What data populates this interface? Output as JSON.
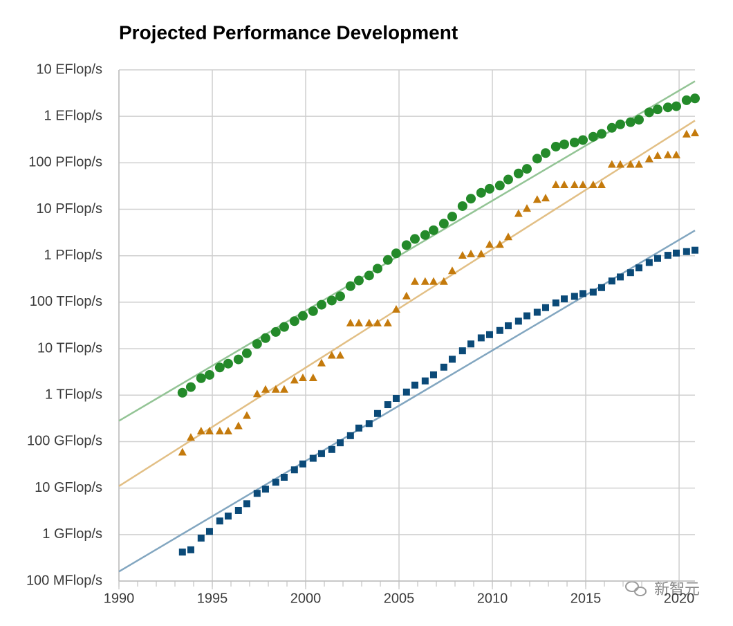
{
  "chart_data": {
    "type": "scatter",
    "title": "Projected Performance Development",
    "log_scale": true,
    "grid": true,
    "xlim": [
      1990,
      2020.85
    ],
    "xticks": [
      1990,
      1995,
      2000,
      2005,
      2010,
      2015,
      2020
    ],
    "ylim": [
      100000000.0,
      1e+19
    ],
    "yticks": [
      {
        "value": 100000000.0,
        "label": "100 MFlop/s"
      },
      {
        "value": 1000000000.0,
        "label": "1 GFlop/s"
      },
      {
        "value": 10000000000.0,
        "label": "10 GFlop/s"
      },
      {
        "value": 100000000000.0,
        "label": "100 GFlop/s"
      },
      {
        "value": 1000000000000.0,
        "label": "1 TFlop/s"
      },
      {
        "value": 10000000000000.0,
        "label": "10 TFlop/s"
      },
      {
        "value": 100000000000000.0,
        "label": "100 TFlop/s"
      },
      {
        "value": 1000000000000000.0,
        "label": "1 PFlop/s"
      },
      {
        "value": 1e+16,
        "label": "10 PFlop/s"
      },
      {
        "value": 1e+17,
        "label": "100 PFlop/s"
      },
      {
        "value": 1e+18,
        "label": "1 EFlop/s"
      },
      {
        "value": 1e+19,
        "label": "10 EFlop/s"
      }
    ],
    "x": [
      1993.4,
      1993.85,
      1994.4,
      1994.85,
      1995.4,
      1995.85,
      1996.4,
      1996.85,
      1997.4,
      1997.85,
      1998.4,
      1998.85,
      1999.4,
      1999.85,
      2000.4,
      2000.85,
      2001.4,
      2001.85,
      2002.4,
      2002.85,
      2003.4,
      2003.85,
      2004.4,
      2004.85,
      2005.4,
      2005.85,
      2006.4,
      2006.85,
      2007.4,
      2007.85,
      2008.4,
      2008.85,
      2009.4,
      2009.85,
      2010.4,
      2010.85,
      2011.4,
      2011.85,
      2012.4,
      2012.85,
      2013.4,
      2013.85,
      2014.4,
      2014.85,
      2015.4,
      2015.85,
      2016.4,
      2016.85,
      2017.4,
      2017.85,
      2018.4,
      2018.85,
      2019.4,
      2019.85,
      2020.4,
      2020.85
    ],
    "series": [
      {
        "marker": "circle",
        "color": "#248a2a",
        "values": [
          1128000000000.0,
          1493000000000.0,
          2317000000000.0,
          2732000000000.0,
          3940000000000.0,
          4770000000000.0,
          5880000000000.0,
          7990000000000.0,
          12700000000000.0,
          16900000000000.0,
          22900000000000.0,
          29400000000000.0,
          39100000000000.0,
          50800000000000.0,
          64300000000000.0,
          88100000000000.0,
          108800000000000.0,
          134300000000000.0,
          222000000000000.0,
          293000000000000.0,
          375000000000000.0,
          528000000000000.0,
          813000000000000.0,
          1127000000000000.0,
          1690000000000000.0,
          2300000000000000.0,
          2790000000000000.0,
          3540000000000000.0,
          4920000000000000.0,
          6970000000000000.0,
          1.17e+16,
          1.69e+16,
          2.26e+16,
          2.76e+16,
          3.24e+16,
          4.37e+16,
          5.89e+16,
          7.42e+16,
          1.23e+17,
          1.62e+17,
          2.23e+17,
          2.5e+17,
          2.74e+17,
          3.09e+17,
          3.63e+17,
          4.2e+17,
          5.66e+17,
          6.72e+17,
          7.49e+17,
          8.45e+17,
          1.22e+18,
          1.41e+18,
          1.56e+18,
          1.65e+18,
          2.22e+18,
          2.43e+18
        ]
      },
      {
        "marker": "triangle",
        "color": "#c47a0c",
        "values": [
          59700000000.0,
          124000000000.0,
          170000000000.0,
          170000000000.0,
          170000000000.0,
          170000000000.0,
          220000000000.0,
          368000000000.0,
          1070000000000.0,
          1340000000000.0,
          1340000000000.0,
          1340000000000.0,
          2120000000000.0,
          2380000000000.0,
          2380000000000.0,
          4940000000000.0,
          7230000000000.0,
          7230000000000.0,
          35900000000000.0,
          35900000000000.0,
          35900000000000.0,
          35900000000000.0,
          35900000000000.0,
          70700000000000.0,
          136800000000000.0,
          280600000000000.0,
          280600000000000.0,
          280600000000000.0,
          280600000000000.0,
          478200000000000.0,
          1026000000000000.0,
          1105000000000000.0,
          1105000000000000.0,
          1759000000000000.0,
          1759000000000000.0,
          2566000000000000.0,
          8160000000000000.0,
          1.051e+16,
          1.632e+16,
          1.759e+16,
          3.386e+16,
          3.386e+16,
          3.386e+16,
          3.386e+16,
          3.386e+16,
          3.386e+16,
          9.3e+16,
          9.3e+16,
          9.3e+16,
          9.3e+16,
          1.223e+17,
          1.435e+17,
          1.486e+17,
          1.486e+17,
          4.155e+17,
          4.42e+17
        ]
      },
      {
        "marker": "square",
        "color": "#0b4a78",
        "values": [
          420000000.0,
          470000000.0,
          840000000.0,
          1170000000.0,
          1960000000.0,
          2500000000.0,
          3300000000.0,
          4600000000.0,
          7700000000.0,
          9500000000.0,
          13400000000.0,
          17100000000.0,
          24700000000.0,
          33100000000.0,
          43800000000.0,
          55100000000.0,
          67800000000.0,
          94300000000.0,
          134300000000.0,
          195800000000.0,
          245100000000.0,
          403400000000.0,
          624000000000.0,
          851000000000.0,
          1166000000000.0,
          1646000000000.0,
          2026000000000.0,
          2737000000000.0,
          4005000000000.0,
          5929000000000.0,
          9000000000000.0,
          12640000000000.0,
          17090000000000.0,
          20050000000000.0,
          24670000000000.0,
          31120000000000.0,
          39090000000000.0,
          50940000000000.0,
          60820000000000.0,
          76500000000000.0,
          96620000000000.0,
          117800000000000.0,
          133700000000000.0,
          153400000000000.0,
          164700000000000.0,
          206300000000000.0,
          286100000000000.0,
          349300000000000.0,
          432200000000000.0,
          548300000000000.0,
          715600000000000.0,
          874800000000000.0,
          1022000000000000.0,
          1142000000000000.0,
          1228000000000000.0,
          1317000000000000.0
        ]
      }
    ],
    "trend_lines": [
      {
        "color": "#93c495",
        "x": [
          1990,
          2020.85
        ],
        "values": [
          280000000000.0,
          5.7e+18
        ]
      },
      {
        "color": "#e2bf85",
        "x": [
          1990,
          2020.85
        ],
        "values": [
          11000000000.0,
          8.1e+17
        ]
      },
      {
        "color": "#82a6c0",
        "x": [
          1990,
          2020.85
        ],
        "values": [
          160000000.0,
          3500000000000000.0
        ]
      }
    ],
    "watermark": "新智元"
  }
}
